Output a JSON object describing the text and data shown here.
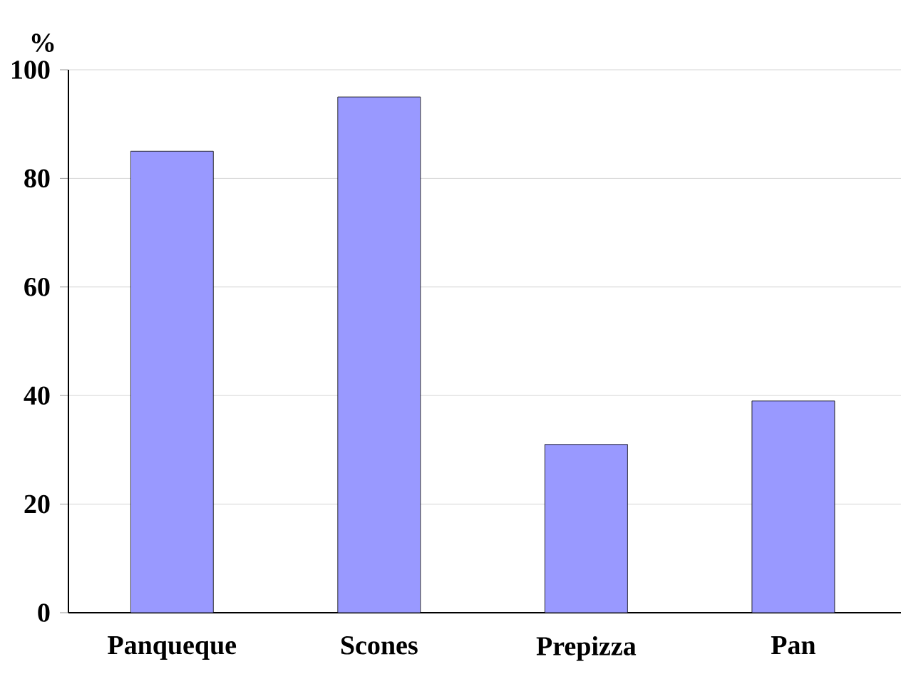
{
  "chart_data": {
    "type": "bar",
    "ylabel": "%",
    "categories": [
      "Panqueque",
      "Scones",
      "Prepizza",
      "Pan"
    ],
    "values": [
      85,
      95,
      31,
      39
    ],
    "color": "#9999ff",
    "ylim": [
      0,
      100
    ],
    "yticks": [
      0,
      20,
      40,
      60,
      80,
      100
    ],
    "grid": "y"
  }
}
